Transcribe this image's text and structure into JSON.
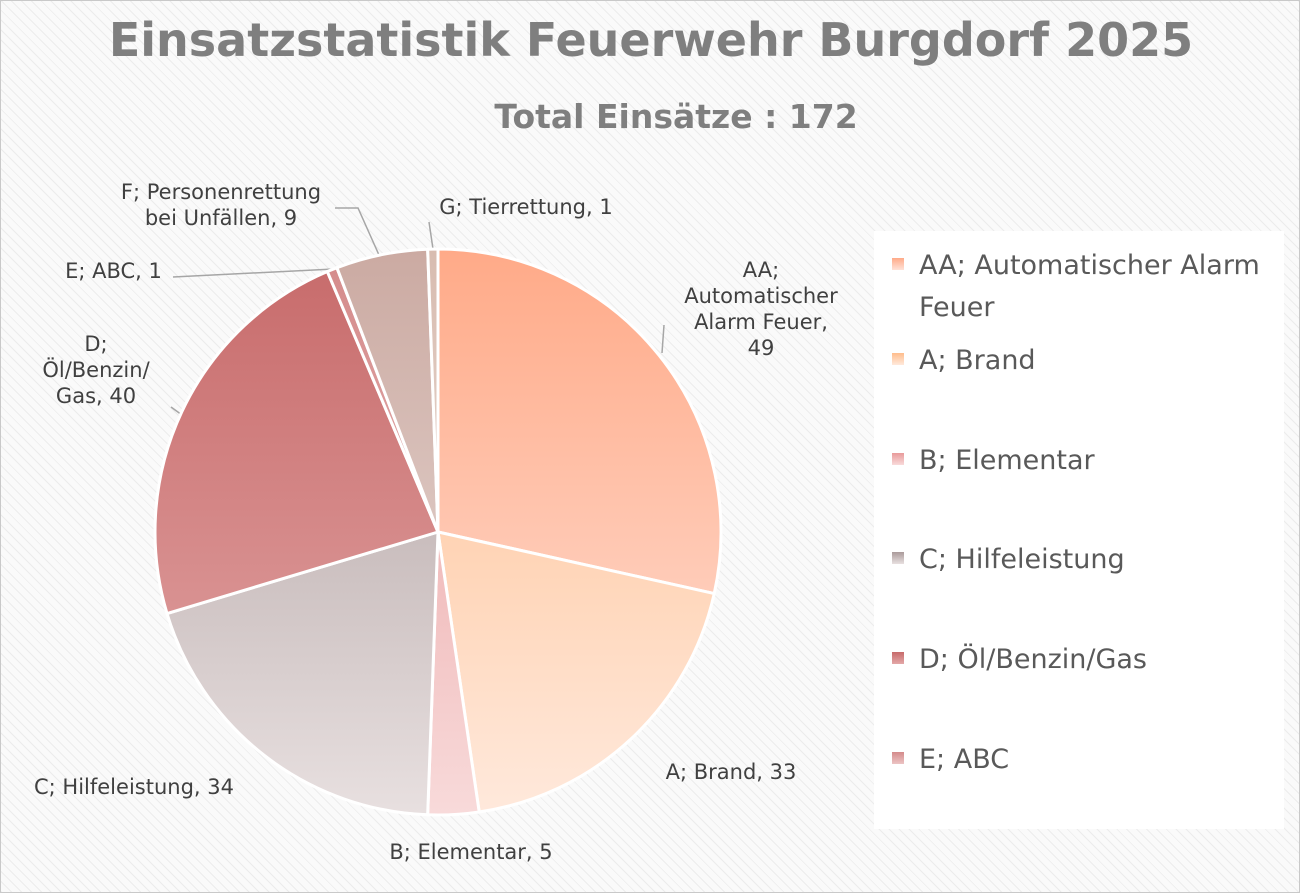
{
  "chart_data": {
    "type": "pie",
    "title": "Einsatzstatistik Feuerwehr Burgdorf 2025",
    "subtitle": "Total  Einsätze  : 172",
    "series": [
      {
        "name": "AA; Automatischer Alarm Feuer",
        "label": "AA;\nAutomatischer\nAlarm Feuer,\n49",
        "value": 49,
        "color": "#ffaa88",
        "color_light": "#ffe2d8"
      },
      {
        "name": "A; Brand",
        "label": "A; Brand, 33",
        "value": 33,
        "color": "#ffbd8c",
        "color_light": "#ffe9dc"
      },
      {
        "name": "B; Elementar",
        "label": "B; Elementar, 5",
        "value": 5,
        "color": "#e89a9a",
        "color_light": "#f8dada"
      },
      {
        "name": "C; Hilfeleistung",
        "label": "C; Hilfeleistung, 34",
        "value": 34,
        "color": "#aa9a9a",
        "color_light": "#e8e0e0"
      },
      {
        "name": "D; Öl/Benzin/Gas",
        "label": "D;\nÖl/Benzin/\nGas, 40",
        "value": 40,
        "color": "#c76a6a",
        "color_light": "#e3a8a8"
      },
      {
        "name": "E; ABC",
        "label": "E; ABC, 1",
        "value": 1,
        "color": "#d48a8a",
        "color_light": "#ecc4c4"
      },
      {
        "name": "F; Personenrettung bei Unfällen",
        "label": "F; Personenrettung\nbei Unfällen, 9",
        "value": 9,
        "color": "#cbaaa2",
        "color_light": "#ece0dc"
      },
      {
        "name": "G; Tierrettung",
        "label": "G; Tierrettung, 1",
        "value": 1,
        "color": "#d8bcb0",
        "color_light": "#f2e8e4"
      }
    ],
    "legend_position": "right",
    "legend_visible": [
      "AA; Automatischer Alarm Feuer",
      "A; Brand",
      "B; Elementar",
      "C; Hilfeleistung",
      "D; Öl/Benzin/Gas",
      "E; ABC"
    ]
  }
}
